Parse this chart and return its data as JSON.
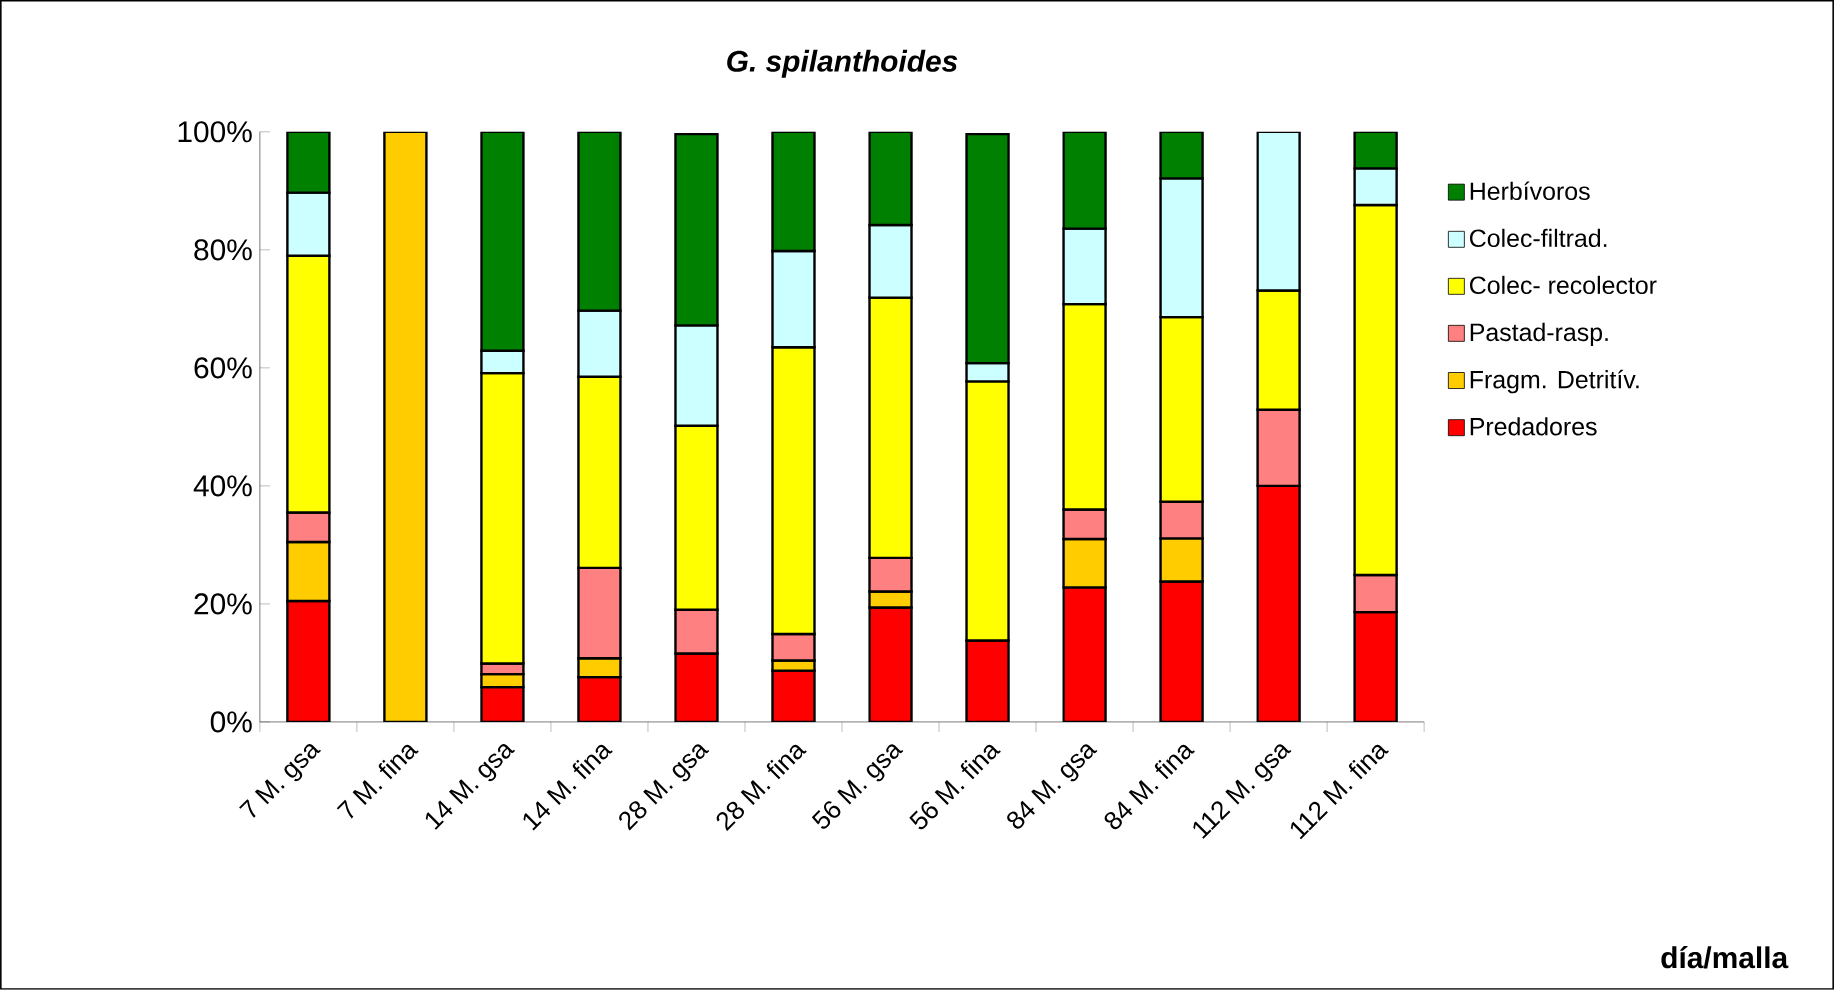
{
  "chart_data": {
    "type": "bar",
    "stacked": true,
    "title": "G. spilanthoides",
    "annotations": [
      "día/malla"
    ],
    "categories": [
      "7 M. gsa",
      "7 M. fina",
      "14 M. gsa",
      "14 M. fina",
      "28 M. gsa",
      "28 M. fina",
      "56 M. gsa",
      "56 M. fina",
      "84 M. gsa",
      "84 M. fina",
      "112 M. gsa",
      "112 M. fina"
    ],
    "series": [
      {
        "name": "Predadores",
        "color": "#ff0000",
        "values": [
          20.5,
          0,
          5.9,
          7.6,
          11.6,
          8.7,
          19.4,
          13.8,
          22.8,
          23.8,
          40,
          18.6
        ]
      },
      {
        "name": "Fragm. Detritív.",
        "color": "#ffcc00",
        "values": [
          10,
          100,
          2.2,
          3.2,
          null,
          1.7,
          2.7,
          null,
          8.2,
          7.3,
          0,
          0
        ]
      },
      {
        "name": "Pastad-rasp.",
        "color": "#ff8080",
        "values": [
          5,
          0,
          1.8,
          15.3,
          7.4,
          4.5,
          5.7,
          0,
          5,
          6.2,
          12.9,
          6.3
        ]
      },
      {
        "name": "Colec- recolector",
        "color": "#ffff00",
        "values": [
          43.5,
          0,
          49.2,
          32.4,
          31.2,
          48.6,
          44.1,
          43.9,
          34.8,
          31.3,
          20.2,
          62.7
        ]
      },
      {
        "name": "Colec-filtrad.",
        "color": "#ccffff",
        "values": [
          10.7,
          0,
          3.8,
          11.2,
          17,
          16.3,
          12.3,
          3.1,
          12.8,
          23.5,
          26.9,
          6.2
        ]
      },
      {
        "name": "Herbívoros",
        "color": "#008000",
        "values": [
          10.3,
          0,
          37.1,
          30.3,
          32.4,
          20.2,
          15.8,
          38.8,
          16.4,
          7.9,
          0,
          6.2
        ]
      }
    ],
    "ylim": [
      0,
      100
    ],
    "yticks": [
      {
        "value": 0,
        "label": "0%"
      },
      {
        "value": 20,
        "label": "20%"
      },
      {
        "value": 40,
        "label": "40%"
      },
      {
        "value": 60,
        "label": "60%"
      },
      {
        "value": 80,
        "label": "80%"
      },
      {
        "value": 100,
        "label": "100%"
      }
    ],
    "legend": "right",
    "grid": false
  }
}
